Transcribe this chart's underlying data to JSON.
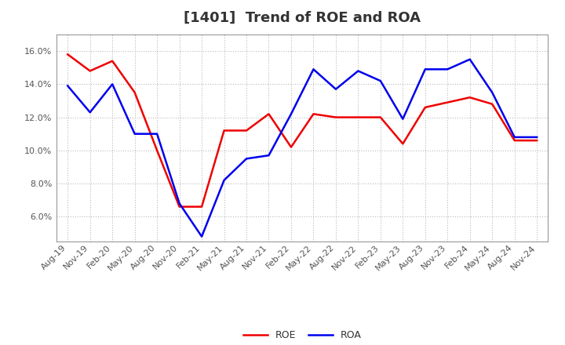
{
  "title": "[1401]  Trend of ROE and ROA",
  "labels": [
    "Aug-19",
    "Nov-19",
    "Feb-20",
    "May-20",
    "Aug-20",
    "Nov-20",
    "Feb-21",
    "May-21",
    "Aug-21",
    "Nov-21",
    "Feb-22",
    "May-22",
    "Aug-22",
    "Nov-22",
    "Feb-23",
    "May-23",
    "Aug-23",
    "Nov-23",
    "Feb-24",
    "May-24",
    "Aug-24",
    "Nov-24"
  ],
  "ROE": [
    15.8,
    14.8,
    15.4,
    13.5,
    10.0,
    6.6,
    6.6,
    11.2,
    11.2,
    12.2,
    10.2,
    12.2,
    12.0,
    12.0,
    12.0,
    10.4,
    12.6,
    12.9,
    13.2,
    12.8,
    10.6,
    10.6
  ],
  "ROA": [
    13.9,
    12.3,
    14.0,
    11.0,
    11.0,
    6.8,
    4.8,
    8.2,
    9.5,
    9.7,
    12.2,
    14.9,
    13.7,
    14.8,
    14.2,
    11.9,
    14.9,
    14.9,
    15.5,
    13.5,
    10.8,
    10.8
  ],
  "ROE_color": "#ee0000",
  "ROA_color": "#0000ee",
  "background_color": "#ffffff",
  "grid_color": "#aaaaaa",
  "ylim": [
    4.5,
    17.0
  ],
  "yticks": [
    6.0,
    8.0,
    10.0,
    12.0,
    14.0,
    16.0
  ],
  "title_fontsize": 13,
  "tick_fontsize": 8,
  "legend_fontsize": 9,
  "line_width": 1.8
}
